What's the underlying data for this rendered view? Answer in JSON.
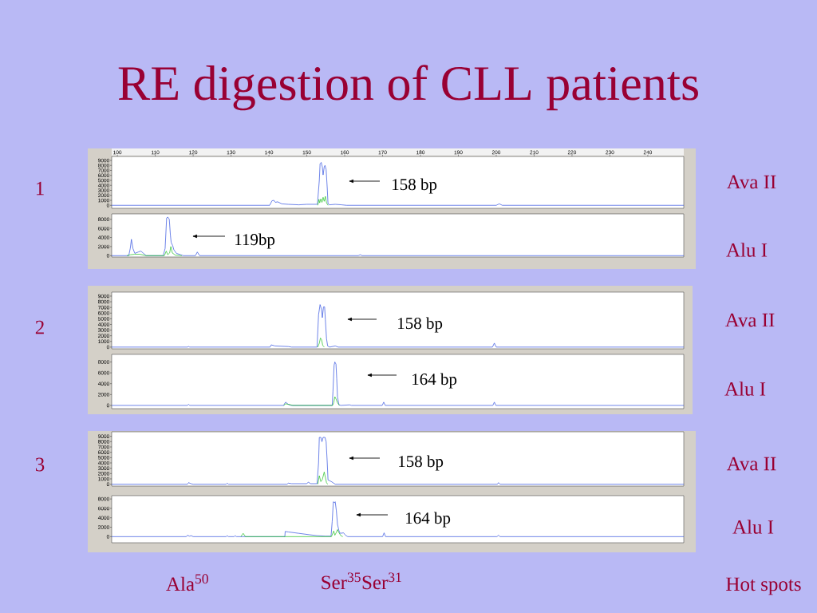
{
  "chart_data": [
    {
      "type": "other",
      "title": "RE digestion of CLL patients"
    },
    {
      "type": "line",
      "ylabel": "1",
      "y2label": "Ava II",
      "xlim": [
        98.5,
        249.5
      ],
      "xticks": [
        100,
        110,
        120,
        130,
        140,
        150,
        160,
        170,
        180,
        190,
        200,
        210,
        220,
        230,
        240
      ],
      "ylim": [
        -600,
        9800
      ],
      "yticks": [
        0,
        1000,
        2000,
        3000,
        4000,
        5000,
        6000,
        7000,
        8000,
        9000
      ],
      "annotations": [
        "158 bp"
      ],
      "series": [
        {
          "color": "#3050e0",
          "x": [
            98.5,
            140.2,
            140.8,
            141.3,
            141.7,
            142.3,
            143.4,
            145.1,
            147.9,
            150.0,
            152.8,
            153.3,
            153.5,
            153.8,
            154.1,
            154.3,
            154.6,
            154.8,
            155.1,
            155.4,
            155.6,
            156.0,
            157.5,
            159.2,
            160.5,
            200.0,
            200.8,
            201.6,
            249.5
          ],
          "values": [
            0,
            0,
            900,
            1000,
            600,
            700,
            300,
            200,
            100,
            200,
            200,
            5000,
            8300,
            8600,
            7700,
            6100,
            7700,
            8000,
            7200,
            3400,
            300,
            100,
            200,
            100,
            0,
            0,
            300,
            0,
            0
          ]
        },
        {
          "color": "#20c020",
          "x": [
            152.9,
            153.2,
            153.4,
            153.7,
            154.0,
            154.3,
            154.6,
            154.9,
            155.2,
            155.6
          ],
          "values": [
            0,
            1200,
            500,
            1300,
            600,
            1600,
            800,
            1800,
            500,
            0
          ]
        }
      ]
    },
    {
      "type": "line",
      "y2label": "Alu I",
      "xlim": [
        98.5,
        249.5
      ],
      "ylim": [
        -300,
        9200
      ],
      "yticks": [
        0,
        2000,
        4000,
        6000,
        8000
      ],
      "tick_labels": "y",
      "annotations": [
        "119bp"
      ],
      "series": [
        {
          "color": "#3050e0",
          "x": [
            98.5,
            103.0,
            103.4,
            103.7,
            104.1,
            104.6,
            105.5,
            106.2,
            106.9,
            107.6,
            112.1,
            112.6,
            113.0,
            113.3,
            113.7,
            114.0,
            114.2,
            114.6,
            114.9,
            115.6,
            116.7,
            117.4,
            120.6,
            121.1,
            121.7,
            163.6,
            164.1,
            164.6,
            249.5
          ],
          "values": [
            0,
            0,
            1600,
            3600,
            1600,
            500,
            800,
            1000,
            500,
            0,
            0,
            1600,
            8300,
            8500,
            8000,
            4500,
            2900,
            2200,
            1300,
            500,
            200,
            0,
            0,
            800,
            0,
            0,
            200,
            0,
            0
          ]
        },
        {
          "color": "#20c020",
          "x": [
            102.5,
            103.5,
            104.5,
            106.0,
            107.5,
            112.4,
            112.9,
            113.3,
            113.8,
            114.1,
            114.5,
            115.3,
            117.0
          ],
          "values": [
            0,
            200,
            300,
            300,
            0,
            0,
            1000,
            200,
            600,
            2000,
            600,
            100,
            0
          ]
        }
      ]
    },
    {
      "type": "line",
      "ylabel": "2",
      "y2label": "Ava II",
      "xlim": [
        98.5,
        249.5
      ],
      "ylim": [
        -300,
        9700
      ],
      "yticks": [
        0,
        1000,
        2000,
        3000,
        4000,
        5000,
        6000,
        7000,
        8000,
        9000
      ],
      "tick_labels": "y",
      "annotations": [
        "158 bp"
      ],
      "series": [
        {
          "color": "#3050e0",
          "x": [
            98.5,
            118.5,
            118.8,
            119.1,
            140.3,
            140.6,
            141.6,
            145.1,
            146.0,
            152.7,
            153.1,
            153.5,
            153.9,
            154.1,
            154.4,
            154.7,
            154.9,
            155.2,
            155.5,
            156.0,
            157.5,
            158.3,
            199.0,
            199.5,
            200.0,
            249.5
          ],
          "values": [
            0,
            0,
            100,
            0,
            0,
            400,
            200,
            100,
            0,
            0,
            5700,
            7500,
            6600,
            5200,
            7100,
            7100,
            4800,
            1500,
            200,
            0,
            200,
            0,
            0,
            700,
            0,
            0
          ]
        },
        {
          "color": "#20c020",
          "x": [
            152.9,
            153.3,
            153.6,
            153.9,
            154.2,
            154.6
          ],
          "values": [
            0,
            700,
            1600,
            1300,
            300,
            0
          ]
        }
      ]
    },
    {
      "type": "line",
      "y2label": "Alu I",
      "xlim": [
        98.5,
        249.5
      ],
      "ylim": [
        -600,
        9400
      ],
      "yticks": [
        0,
        2000,
        4000,
        6000,
        8000
      ],
      "tick_labels": "y",
      "annotations": [
        "164 bp"
      ],
      "series": [
        {
          "color": "#3050e0",
          "x": [
            98.5,
            118.5,
            118.8,
            119.1,
            143.9,
            144.1,
            144.4,
            145.1,
            145.8,
            156.7,
            156.9,
            157.2,
            157.4,
            157.7,
            157.9,
            158.1,
            158.5,
            159.0,
            161.3,
            161.8,
            169.9,
            170.3,
            170.7,
            199.1,
            199.5,
            199.9,
            249.5
          ],
          "values": [
            0,
            0,
            200,
            0,
            0,
            300,
            600,
            200,
            0,
            0,
            2500,
            7400,
            8000,
            7600,
            4900,
            1500,
            100,
            0,
            100,
            0,
            0,
            600,
            0,
            0,
            600,
            0,
            0
          ]
        },
        {
          "color": "#20c020",
          "x": [
            143.9,
            144.4,
            145.8,
            146.3,
            156.8,
            157.1,
            157.4,
            157.7,
            158.1,
            158.6
          ],
          "values": [
            0,
            300,
            100,
            0,
            0,
            500,
            1600,
            1200,
            500,
            0
          ]
        }
      ]
    },
    {
      "type": "line",
      "ylabel": "3",
      "y2label": "Ava II",
      "xlim": [
        98.5,
        249.5
      ],
      "ylim": [
        -350,
        9850
      ],
      "yticks": [
        0,
        1000,
        2000,
        3000,
        4000,
        5000,
        6000,
        7000,
        8000,
        9000
      ],
      "tick_labels": "y",
      "annotations": [
        "158 bp"
      ],
      "series": [
        {
          "color": "#3050e0",
          "x": [
            98.5,
            118.5,
            118.8,
            119.4,
            120.0,
            128.7,
            129.0,
            129.3,
            144.8,
            145.1,
            146.0,
            150.0,
            150.4,
            151.0,
            152.7,
            153.1,
            153.3,
            153.7,
            154.0,
            154.3,
            154.8,
            155.1,
            155.4,
            155.6,
            156.2,
            156.9,
            157.5,
            200.3,
            200.6,
            201.0,
            249.5
          ],
          "values": [
            0,
            0,
            300,
            100,
            0,
            0,
            200,
            0,
            0,
            200,
            100,
            100,
            400,
            100,
            100,
            4000,
            8800,
            8800,
            8000,
            8800,
            8800,
            8000,
            4000,
            800,
            600,
            300,
            0,
            0,
            300,
            0,
            0
          ]
        },
        {
          "color": "#20c020",
          "x": [
            152.9,
            153.3,
            153.7,
            154.1,
            154.6,
            154.9,
            155.2,
            155.5
          ],
          "values": [
            0,
            1600,
            500,
            900,
            2300,
            1300,
            300,
            0
          ]
        }
      ]
    },
    {
      "type": "line",
      "y2label": "Alu I",
      "xlim": [
        98.5,
        249.5
      ],
      "ylim": [
        -1300,
        8700
      ],
      "yticks": [
        0,
        2000,
        4000,
        6000,
        8000
      ],
      "tick_labels": "y",
      "annotations": [
        "164 bp"
      ],
      "series": [
        {
          "color": "#3050e0",
          "x": [
            98.5,
            118.2,
            118.5,
            119.0,
            119.5,
            120.0,
            128.7,
            129.0,
            129.3,
            130.8,
            131.1,
            131.4,
            144.2,
            144.3,
            145.1,
            147.9,
            150.7,
            152.8,
            154.9,
            156.4,
            156.7,
            157.0,
            157.3,
            157.5,
            157.8,
            158.1,
            158.5,
            158.8,
            159.7,
            160.2,
            160.8,
            170.0,
            170.4,
            170.8,
            200.2,
            200.6,
            201.0,
            249.5
          ],
          "values": [
            0,
            0,
            300,
            100,
            200,
            0,
            0,
            200,
            0,
            0,
            200,
            0,
            0,
            1100,
            1000,
            700,
            400,
            200,
            100,
            100,
            3200,
            7400,
            7200,
            7400,
            5500,
            2600,
            1200,
            700,
            800,
            300,
            0,
            0,
            800,
            0,
            0,
            300,
            0,
            0
          ]
        },
        {
          "color": "#20c020",
          "x": [
            132.6,
            133.2,
            133.8,
            156.5,
            157.1,
            157.4,
            157.8,
            158.1,
            158.5,
            159.0,
            159.5
          ],
          "values": [
            0,
            700,
            0,
            0,
            1200,
            300,
            900,
            1500,
            800,
            200,
            0
          ]
        }
      ]
    },
    {
      "type": "other",
      "annotations": [
        "Ala$^{50}$",
        "Ser$^{35}$Ser$^{31}$",
        "Hot spots"
      ]
    }
  ]
}
